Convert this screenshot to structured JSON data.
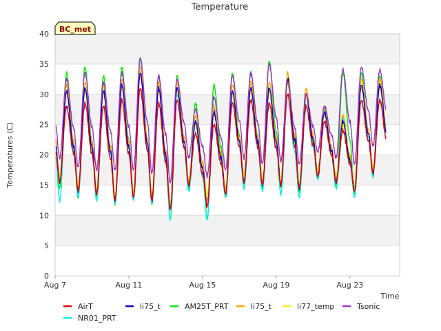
{
  "chart_data": {
    "type": "line",
    "title": "Temperature",
    "xlabel": "Time",
    "ylabel": "Temperatures (C)",
    "badge": "BC_met",
    "x_start_day": 7,
    "x_end_day": 25.7,
    "x_tick_labels": [
      "Aug 7",
      "Aug 11",
      "Aug 15",
      "Aug 19",
      "Aug 23"
    ],
    "x_tick_days": [
      7,
      11,
      15,
      19,
      23
    ],
    "ylim": [
      0,
      40
    ],
    "y_ticks": [
      0,
      5,
      10,
      15,
      20,
      25,
      30,
      35,
      40
    ],
    "grid": true,
    "legend_position": "bottom",
    "days": [
      "Aug 7",
      "Aug 8",
      "Aug 9",
      "Aug 10",
      "Aug 11",
      "Aug 12",
      "Aug 13",
      "Aug 14",
      "Aug 15",
      "Aug 16",
      "Aug 17",
      "Aug 18",
      "Aug 19",
      "Aug 20",
      "Aug 21",
      "Aug 22",
      "Aug 23",
      "Aug 24"
    ],
    "series": [
      {
        "name": "AirT",
        "color": "#dd0000",
        "min": [
          15.5,
          14.0,
          13.5,
          12.5,
          13.0,
          12.5,
          11.0,
          15.0,
          11.5,
          13.5,
          15.5,
          15.0,
          15.0,
          14.5,
          16.5,
          15.5,
          14.0,
          17.0
        ],
        "max": [
          28.0,
          28.5,
          28.0,
          29.0,
          31.0,
          28.5,
          29.0,
          23.5,
          25.0,
          28.5,
          29.0,
          28.5,
          30.0,
          28.0,
          25.5,
          24.0,
          29.0,
          29.0
        ]
      },
      {
        "name": "li75_t",
        "color": "#0000cc",
        "min": [
          15.5,
          14.0,
          13.5,
          12.5,
          13.0,
          12.5,
          11.0,
          15.0,
          11.5,
          13.5,
          15.5,
          15.0,
          15.0,
          14.5,
          16.5,
          15.5,
          14.0,
          17.0
        ],
        "max": [
          30.5,
          31.0,
          30.5,
          31.5,
          33.5,
          31.0,
          31.0,
          25.5,
          27.0,
          30.5,
          31.0,
          31.0,
          32.5,
          30.0,
          27.0,
          25.5,
          31.5,
          31.5
        ]
      },
      {
        "name": "AM25T_PRT",
        "color": "#00ee00",
        "min": [
          14.5,
          13.0,
          12.5,
          12.0,
          12.5,
          12.0,
          9.3,
          14.5,
          9.3,
          13.0,
          15.0,
          14.5,
          14.5,
          14.0,
          16.0,
          15.0,
          13.5,
          16.5
        ],
        "max": [
          33.5,
          34.5,
          33.0,
          34.5,
          36.0,
          33.0,
          33.0,
          28.5,
          31.5,
          33.5,
          33.5,
          35.5,
          32.0,
          29.5,
          27.5,
          33.5,
          33.5,
          33.0
        ]
      },
      {
        "name": "li75_t",
        "color": "#ffa500",
        "min": [
          16.0,
          14.5,
          14.0,
          13.0,
          13.5,
          13.0,
          11.5,
          15.5,
          12.5,
          14.0,
          16.0,
          15.5,
          15.5,
          15.0,
          17.0,
          16.0,
          14.5,
          17.5
        ],
        "max": [
          31.5,
          32.0,
          31.5,
          32.5,
          34.5,
          32.0,
          32.0,
          26.5,
          28.0,
          31.5,
          32.0,
          32.0,
          33.5,
          31.0,
          28.0,
          26.5,
          32.5,
          32.5
        ]
      },
      {
        "name": "li77_temp",
        "color": "#ffee00",
        "min": [
          16.5,
          15.0,
          14.5,
          13.5,
          14.0,
          13.5,
          12.0,
          16.0,
          13.5,
          14.5,
          16.5,
          16.0,
          16.0,
          15.5,
          17.5,
          16.5,
          15.0,
          18.0
        ],
        "max": [
          30.0,
          30.5,
          30.0,
          31.0,
          33.0,
          30.5,
          30.5,
          25.0,
          26.5,
          30.0,
          30.5,
          30.5,
          32.0,
          29.5,
          26.5,
          25.0,
          31.0,
          31.0
        ]
      },
      {
        "name": "Tsonic",
        "color": "#9933cc",
        "min": [
          19.5,
          18.0,
          17.5,
          17.5,
          17.5,
          17.0,
          15.5,
          19.5,
          16.5,
          17.5,
          19.5,
          18.5,
          19.0,
          18.5,
          20.5,
          19.5,
          18.5,
          21.5
        ],
        "max": [
          32.5,
          33.5,
          32.0,
          33.5,
          36.0,
          33.0,
          32.5,
          27.5,
          29.5,
          33.0,
          33.5,
          35.0,
          32.0,
          30.0,
          28.0,
          34.0,
          34.5,
          34.0
        ]
      },
      {
        "name": "NR01_PRT",
        "color": "#00eeee",
        "min": [
          12.5,
          13.0,
          12.5,
          12.0,
          12.5,
          12.0,
          9.3,
          14.0,
          9.5,
          13.0,
          14.5,
          14.0,
          13.5,
          13.0,
          16.0,
          14.5,
          13.0,
          16.5
        ],
        "max": [
          30.5,
          31.0,
          30.5,
          31.5,
          33.5,
          31.0,
          30.0,
          25.0,
          27.5,
          30.0,
          30.5,
          31.0,
          30.0,
          28.0,
          26.5,
          26.0,
          31.0,
          31.5
        ]
      }
    ],
    "legend": [
      {
        "label": "AirT",
        "color": "#dd0000"
      },
      {
        "label": "li75_t",
        "color": "#0000cc"
      },
      {
        "label": "AM25T_PRT",
        "color": "#00ee00"
      },
      {
        "label": "li75_t",
        "color": "#ffa500"
      },
      {
        "label": "li77_temp",
        "color": "#ffee00"
      },
      {
        "label": "Tsonic",
        "color": "#9933cc"
      },
      {
        "label": "NR01_PRT",
        "color": "#00eeee"
      }
    ]
  }
}
